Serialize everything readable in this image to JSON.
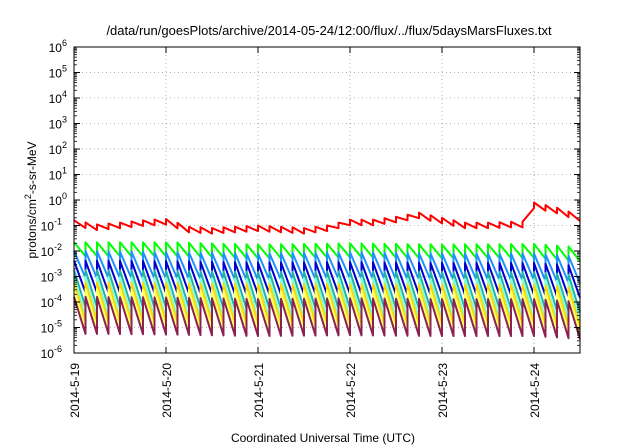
{
  "chart_data": {
    "type": "line",
    "title": "/data/run/goesPlots/archive/2014-05-24/12:00/flux/../flux/5daysMarsFluxes.txt",
    "xlabel": "Coordinated Universal Time (UTC)",
    "ylabel": "protons/cm2-s-sr-MeV",
    "ylabel_parts": {
      "pre": "protons/cm",
      "sup": "2",
      "post": "-s-sr-MeV"
    },
    "y_scale": "log",
    "ylim": [
      1e-06,
      1000000.0
    ],
    "y_ticks": [
      {
        "base": "10",
        "exp": "-6",
        "value": 1e-06
      },
      {
        "base": "10",
        "exp": "-5",
        "value": 1e-05
      },
      {
        "base": "10",
        "exp": "-4",
        "value": 0.0001
      },
      {
        "base": "10",
        "exp": "-3",
        "value": 0.001
      },
      {
        "base": "10",
        "exp": "-2",
        "value": 0.01
      },
      {
        "base": "10",
        "exp": "-1",
        "value": 0.1
      },
      {
        "base": "10",
        "exp": "0",
        "value": 1
      },
      {
        "base": "10",
        "exp": "1",
        "value": 10
      },
      {
        "base": "10",
        "exp": "2",
        "value": 100
      },
      {
        "base": "10",
        "exp": "3",
        "value": 1000
      },
      {
        "base": "10",
        "exp": "4",
        "value": 10000
      },
      {
        "base": "10",
        "exp": "5",
        "value": 100000
      },
      {
        "base": "10",
        "exp": "6",
        "value": 1000000
      }
    ],
    "xlim": [
      "2014-05-19 00:00",
      "2014-05-24 12:00"
    ],
    "x_ticks": [
      "2014-5-19",
      "2014-5-20",
      "2014-5-21",
      "2014-5-22",
      "2014-5-23",
      "2014-5-24"
    ],
    "grid": true,
    "legend": "none",
    "sawtooth_period_hours": 3,
    "series": [
      {
        "color": "#ff0000",
        "points": [
          [
            "2014-05-19 00:00",
            0.16
          ],
          [
            "2014-05-19 06:00",
            0.11
          ],
          [
            "2014-05-19 12:00",
            0.13
          ],
          [
            "2014-05-19 18:00",
            0.16
          ],
          [
            "2014-05-20 00:00",
            0.18
          ],
          [
            "2014-05-20 06:00",
            0.09
          ],
          [
            "2014-05-20 12:00",
            0.08
          ],
          [
            "2014-05-20 18:00",
            0.09
          ],
          [
            "2014-05-21 00:00",
            0.1
          ],
          [
            "2014-05-21 06:00",
            0.09
          ],
          [
            "2014-05-21 12:00",
            0.08
          ],
          [
            "2014-05-21 18:00",
            0.1
          ],
          [
            "2014-05-22 00:00",
            0.17
          ],
          [
            "2014-05-22 06:00",
            0.17
          ],
          [
            "2014-05-22 12:00",
            0.22
          ],
          [
            "2014-05-22 18:00",
            0.32
          ],
          [
            "2014-05-23 00:00",
            0.2
          ],
          [
            "2014-05-23 06:00",
            0.13
          ],
          [
            "2014-05-23 12:00",
            0.13
          ],
          [
            "2014-05-23 18:00",
            0.14
          ],
          [
            "2014-05-23 21:00",
            0.14
          ],
          [
            "2014-05-24 00:00",
            0.8
          ],
          [
            "2014-05-24 06:00",
            0.5
          ],
          [
            "2014-05-24 12:00",
            0.25
          ]
        ],
        "depth": 0.22
      },
      {
        "color": "#00ff00",
        "points": [
          [
            "2014-05-19 00:00",
            0.022
          ],
          [
            "2014-05-20 00:00",
            0.022
          ],
          [
            "2014-05-21 00:00",
            0.018
          ],
          [
            "2014-05-22 00:00",
            0.02
          ],
          [
            "2014-05-23 00:00",
            0.018
          ],
          [
            "2014-05-24 00:00",
            0.019
          ],
          [
            "2014-05-24 12:00",
            0.014
          ]
        ],
        "depth": 0.55
      },
      {
        "color": "#1e90ff",
        "points": [
          [
            "2014-05-19 00:00",
            0.01
          ],
          [
            "2014-05-20 00:00",
            0.009
          ],
          [
            "2014-05-21 00:00",
            0.008
          ],
          [
            "2014-05-22 00:00",
            0.009
          ],
          [
            "2014-05-23 00:00",
            0.008
          ],
          [
            "2014-05-24 00:00",
            0.008
          ],
          [
            "2014-05-24 12:00",
            0.006
          ]
        ],
        "depth": 1.05
      },
      {
        "color": "#0000cd",
        "points": [
          [
            "2014-05-19 00:00",
            0.0042
          ],
          [
            "2014-05-20 00:00",
            0.004
          ],
          [
            "2014-05-21 00:00",
            0.0035
          ],
          [
            "2014-05-22 00:00",
            0.0037
          ],
          [
            "2014-05-23 00:00",
            0.0034
          ],
          [
            "2014-05-24 00:00",
            0.0034
          ],
          [
            "2014-05-24 12:00",
            0.0026
          ]
        ],
        "depth": 1.25
      },
      {
        "color": "#20b2aa",
        "points": [
          [
            "2014-05-19 00:00",
            0.0018
          ],
          [
            "2014-05-20 00:00",
            0.0017
          ],
          [
            "2014-05-21 00:00",
            0.0015
          ],
          [
            "2014-05-22 00:00",
            0.0016
          ],
          [
            "2014-05-23 00:00",
            0.0015
          ],
          [
            "2014-05-24 00:00",
            0.0015
          ],
          [
            "2014-05-24 12:00",
            0.0011
          ]
        ],
        "depth": 1.45
      },
      {
        "color": "#7fffd4",
        "points": [
          [
            "2014-05-19 00:00",
            0.001
          ],
          [
            "2014-05-20 00:00",
            0.0009
          ],
          [
            "2014-05-21 00:00",
            0.0008
          ],
          [
            "2014-05-22 00:00",
            0.0009
          ],
          [
            "2014-05-23 00:00",
            0.0008
          ],
          [
            "2014-05-24 00:00",
            0.0008
          ],
          [
            "2014-05-24 12:00",
            0.0006
          ]
        ],
        "depth": 1.55
      },
      {
        "color": "#ffd700",
        "points": [
          [
            "2014-05-19 00:00",
            0.0006
          ],
          [
            "2014-05-20 00:00",
            0.00055
          ],
          [
            "2014-05-21 00:00",
            0.0005
          ],
          [
            "2014-05-22 00:00",
            0.0005
          ],
          [
            "2014-05-23 00:00",
            0.00048
          ],
          [
            "2014-05-24 00:00",
            0.00048
          ],
          [
            "2014-05-24 12:00",
            0.00036
          ]
        ],
        "depth": 1.55
      },
      {
        "color": "#ffff66",
        "points": [
          [
            "2014-05-19 00:00",
            0.00032
          ],
          [
            "2014-05-20 00:00",
            0.0003
          ],
          [
            "2014-05-21 00:00",
            0.00026
          ],
          [
            "2014-05-22 00:00",
            0.00028
          ],
          [
            "2014-05-23 00:00",
            0.00026
          ],
          [
            "2014-05-24 00:00",
            0.00026
          ],
          [
            "2014-05-24 12:00",
            0.0002
          ]
        ],
        "depth": 1.55
      },
      {
        "color": "#8b2252",
        "points": [
          [
            "2014-05-19 00:00",
            0.00016
          ],
          [
            "2014-05-20 00:00",
            0.00015
          ],
          [
            "2014-05-21 00:00",
            0.00013
          ],
          [
            "2014-05-22 00:00",
            0.00014
          ],
          [
            "2014-05-23 00:00",
            0.00013
          ],
          [
            "2014-05-24 00:00",
            0.00013
          ],
          [
            "2014-05-24 12:00",
            0.0001
          ]
        ],
        "depth": 1.45
      }
    ]
  }
}
